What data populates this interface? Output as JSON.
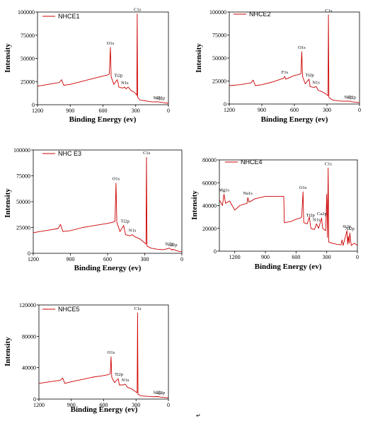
{
  "chart_data": [
    {
      "type": "line",
      "legend": "NHCE1",
      "xlabel": "Binding Energy (ev)",
      "ylabel": "Intensity",
      "xlim": [
        1200,
        0
      ],
      "ylim": [
        0,
        100000
      ],
      "xticks": [
        "1200",
        "900",
        "600",
        "300",
        "0"
      ],
      "yticks": [
        "0",
        "25000",
        "50000",
        "75000",
        "100000"
      ],
      "color": "#cc0000",
      "points": [
        [
          1200,
          20000
        ],
        [
          1100,
          22000
        ],
        [
          1000,
          24000
        ],
        [
          980,
          27000
        ],
        [
          960,
          21000
        ],
        [
          900,
          22000
        ],
        [
          800,
          25000
        ],
        [
          700,
          28000
        ],
        [
          600,
          31000
        ],
        [
          560,
          32000
        ],
        [
          542,
          33000
        ],
        [
          532,
          62000
        ],
        [
          525,
          30000
        ],
        [
          500,
          22000
        ],
        [
          470,
          27000
        ],
        [
          462,
          24000
        ],
        [
          455,
          19000
        ],
        [
          420,
          18000
        ],
        [
          400,
          19000
        ],
        [
          390,
          17000
        ],
        [
          370,
          19000
        ],
        [
          340,
          15000
        ],
        [
          320,
          14000
        ],
        [
          300,
          12000
        ],
        [
          290,
          10000
        ],
        [
          286,
          98000
        ],
        [
          282,
          8000
        ],
        [
          260,
          5000
        ],
        [
          200,
          4000
        ],
        [
          150,
          3000
        ],
        [
          100,
          3200
        ],
        [
          80,
          2800
        ],
        [
          30,
          2000
        ],
        [
          0,
          1500
        ]
      ],
      "peaks": [
        {
          "label": "C1s",
          "x": 285,
          "y": 98000
        },
        {
          "label": "O1s",
          "x": 532,
          "y": 62000
        },
        {
          "label": "Ti2p",
          "x": 459,
          "y": 27000
        },
        {
          "label": "N1s",
          "x": 400,
          "y": 19000
        },
        {
          "label": "Si2p",
          "x": 102,
          "y": 3200
        },
        {
          "label": "Al2p",
          "x": 74,
          "y": 2800
        }
      ]
    },
    {
      "type": "line",
      "legend": "NHCE2",
      "xlabel": "Binding Energy (ev)",
      "ylabel": "Intensity",
      "xlim": [
        1200,
        0
      ],
      "ylim": [
        0,
        100000
      ],
      "xticks": [
        "1200",
        "900",
        "600",
        "300",
        "0"
      ],
      "yticks": [
        "0",
        "25000",
        "50000",
        "75000",
        "100000"
      ],
      "color": "#cc0000",
      "points": [
        [
          1200,
          20000
        ],
        [
          1100,
          21000
        ],
        [
          1000,
          23000
        ],
        [
          980,
          26000
        ],
        [
          960,
          20000
        ],
        [
          900,
          21000
        ],
        [
          800,
          24000
        ],
        [
          700,
          28000
        ],
        [
          689,
          30000
        ],
        [
          680,
          27000
        ],
        [
          600,
          31000
        ],
        [
          560,
          32000
        ],
        [
          540,
          33000
        ],
        [
          532,
          57000
        ],
        [
          525,
          30000
        ],
        [
          500,
          22000
        ],
        [
          465,
          27000
        ],
        [
          455,
          19000
        ],
        [
          420,
          18000
        ],
        [
          400,
          19000
        ],
        [
          380,
          15000
        ],
        [
          340,
          13000
        ],
        [
          310,
          11000
        ],
        [
          290,
          9000
        ],
        [
          286,
          97000
        ],
        [
          282,
          7000
        ],
        [
          250,
          4500
        ],
        [
          200,
          3500
        ],
        [
          150,
          3000
        ],
        [
          100,
          3200
        ],
        [
          70,
          2500
        ],
        [
          0,
          1500
        ]
      ],
      "peaks": [
        {
          "label": "C1s",
          "x": 285,
          "y": 97000
        },
        {
          "label": "O1s",
          "x": 532,
          "y": 57000
        },
        {
          "label": "F1s",
          "x": 689,
          "y": 30000
        },
        {
          "label": "Ti2p",
          "x": 459,
          "y": 27000
        },
        {
          "label": "N1s",
          "x": 400,
          "y": 19000
        },
        {
          "label": "Si2p",
          "x": 102,
          "y": 3200
        },
        {
          "label": "Al2p",
          "x": 74,
          "y": 2600
        }
      ]
    },
    {
      "type": "line",
      "legend": "NHC E3",
      "xlabel": "Binding Energy (ev)",
      "ylabel": "Intensity",
      "xlim": [
        1200,
        0
      ],
      "ylim": [
        0,
        100000
      ],
      "xticks": [
        "1200",
        "900",
        "600",
        "300",
        "0"
      ],
      "yticks": [
        "0",
        "25000",
        "50000",
        "75000",
        "100000"
      ],
      "color": "#cc0000",
      "points": [
        [
          1200,
          20000
        ],
        [
          1100,
          22000
        ],
        [
          1000,
          24000
        ],
        [
          980,
          28000
        ],
        [
          960,
          21000
        ],
        [
          900,
          22000
        ],
        [
          800,
          25000
        ],
        [
          700,
          27000
        ],
        [
          600,
          29000
        ],
        [
          560,
          30000
        ],
        [
          540,
          31000
        ],
        [
          532,
          68000
        ],
        [
          525,
          30000
        ],
        [
          500,
          21000
        ],
        [
          470,
          27000
        ],
        [
          455,
          18000
        ],
        [
          420,
          17000
        ],
        [
          400,
          18000
        ],
        [
          380,
          16000
        ],
        [
          340,
          14000
        ],
        [
          310,
          11000
        ],
        [
          290,
          9000
        ],
        [
          286,
          93000
        ],
        [
          282,
          7000
        ],
        [
          250,
          5000
        ],
        [
          200,
          4000
        ],
        [
          150,
          3500
        ],
        [
          100,
          5000
        ],
        [
          80,
          3000
        ],
        [
          74,
          4000
        ],
        [
          30,
          2000
        ],
        [
          0,
          1500
        ]
      ],
      "peaks": [
        {
          "label": "C1s",
          "x": 285,
          "y": 93000
        },
        {
          "label": "O1s",
          "x": 532,
          "y": 68000
        },
        {
          "label": "Ti2p",
          "x": 459,
          "y": 27000
        },
        {
          "label": "N1s",
          "x": 400,
          "y": 18000
        },
        {
          "label": "Si2p",
          "x": 102,
          "y": 5000
        },
        {
          "label": "Al2p",
          "x": 74,
          "y": 4000
        }
      ]
    },
    {
      "type": "line",
      "legend": "NHCE4",
      "xlabel": "Binding Energy (ev)",
      "ylabel": "Intensity",
      "xlim": [
        1350,
        0
      ],
      "ylim": [
        0,
        80000
      ],
      "xticks": [
        "1200",
        "900",
        "600",
        "300",
        "0"
      ],
      "yticks": [
        "0",
        "20000",
        "40000",
        "60000",
        "80000"
      ],
      "color": "#cc0000",
      "points": [
        [
          1350,
          45000
        ],
        [
          1320,
          40000
        ],
        [
          1305,
          50000
        ],
        [
          1290,
          42000
        ],
        [
          1250,
          44000
        ],
        [
          1200,
          36000
        ],
        [
          1150,
          40000
        ],
        [
          1080,
          42000
        ],
        [
          1072,
          47000
        ],
        [
          1060,
          43000
        ],
        [
          1000,
          46000
        ],
        [
          900,
          48000
        ],
        [
          800,
          48000
        ],
        [
          720,
          48000
        ],
        [
          715,
          25000
        ],
        [
          650,
          26000
        ],
        [
          600,
          28000
        ],
        [
          560,
          29000
        ],
        [
          545,
          30000
        ],
        [
          532,
          52000
        ],
        [
          525,
          25000
        ],
        [
          490,
          24000
        ],
        [
          470,
          30000
        ],
        [
          455,
          20000
        ],
        [
          420,
          19000
        ],
        [
          400,
          24000
        ],
        [
          380,
          20000
        ],
        [
          350,
          29000
        ],
        [
          340,
          20000
        ],
        [
          310,
          18000
        ],
        [
          300,
          50000
        ],
        [
          292,
          12000
        ],
        [
          286,
          73000
        ],
        [
          280,
          8000
        ],
        [
          250,
          7000
        ],
        [
          200,
          6000
        ],
        [
          160,
          5500
        ],
        [
          150,
          10000
        ],
        [
          140,
          5000
        ],
        [
          102,
          18000
        ],
        [
          95,
          6000
        ],
        [
          90,
          13000
        ],
        [
          80,
          7000
        ],
        [
          74,
          16000
        ],
        [
          60,
          5000
        ],
        [
          30,
          7000
        ],
        [
          0,
          5000
        ]
      ],
      "peaks": [
        {
          "label": "C1s",
          "x": 285,
          "y": 73000
        },
        {
          "label": "O1s",
          "x": 532,
          "y": 52000
        },
        {
          "label": "Mg1s",
          "x": 1305,
          "y": 50000
        },
        {
          "label": "Na1s",
          "x": 1072,
          "y": 47000
        },
        {
          "label": "Ca2p",
          "x": 347,
          "y": 29000
        },
        {
          "label": "Ti2p",
          "x": 459,
          "y": 28000
        },
        {
          "label": "N1s",
          "x": 400,
          "y": 24000
        },
        {
          "label": "Si2p",
          "x": 102,
          "y": 18000
        },
        {
          "label": "Al2p",
          "x": 74,
          "y": 16000
        }
      ]
    },
    {
      "type": "line",
      "legend": "NHCE5",
      "xlabel": "Binding Energy (ev)",
      "ylabel": "Intensity",
      "xlim": [
        1200,
        0
      ],
      "ylim": [
        0,
        120000
      ],
      "xticks": [
        "1200",
        "900",
        "600",
        "300",
        "0"
      ],
      "yticks": [
        "0",
        "40000",
        "80000",
        "120000"
      ],
      "color": "#cc0000",
      "points": [
        [
          1200,
          20000
        ],
        [
          1100,
          22000
        ],
        [
          1000,
          24000
        ],
        [
          980,
          27000
        ],
        [
          960,
          20000
        ],
        [
          900,
          22000
        ],
        [
          800,
          25000
        ],
        [
          700,
          28000
        ],
        [
          600,
          30000
        ],
        [
          560,
          31000
        ],
        [
          540,
          32000
        ],
        [
          532,
          54000
        ],
        [
          525,
          28000
        ],
        [
          500,
          21000
        ],
        [
          465,
          26000
        ],
        [
          455,
          18000
        ],
        [
          420,
          18000
        ],
        [
          400,
          19000
        ],
        [
          380,
          15000
        ],
        [
          340,
          13000
        ],
        [
          310,
          10000
        ],
        [
          290,
          8000
        ],
        [
          286,
          110000
        ],
        [
          282,
          6000
        ],
        [
          250,
          4000
        ],
        [
          200,
          3500
        ],
        [
          150,
          3000
        ],
        [
          100,
          3200
        ],
        [
          74,
          2500
        ],
        [
          0,
          1500
        ]
      ],
      "peaks": [
        {
          "label": "C1s",
          "x": 285,
          "y": 110000
        },
        {
          "label": "O1s",
          "x": 532,
          "y": 54000
        },
        {
          "label": "Ti2p",
          "x": 459,
          "y": 26000
        },
        {
          "label": "N1s",
          "x": 400,
          "y": 19000
        },
        {
          "label": "Si2p",
          "x": 102,
          "y": 3200
        },
        {
          "label": "Al2p",
          "x": 74,
          "y": 2500
        }
      ]
    }
  ],
  "footer_mark": "↵"
}
